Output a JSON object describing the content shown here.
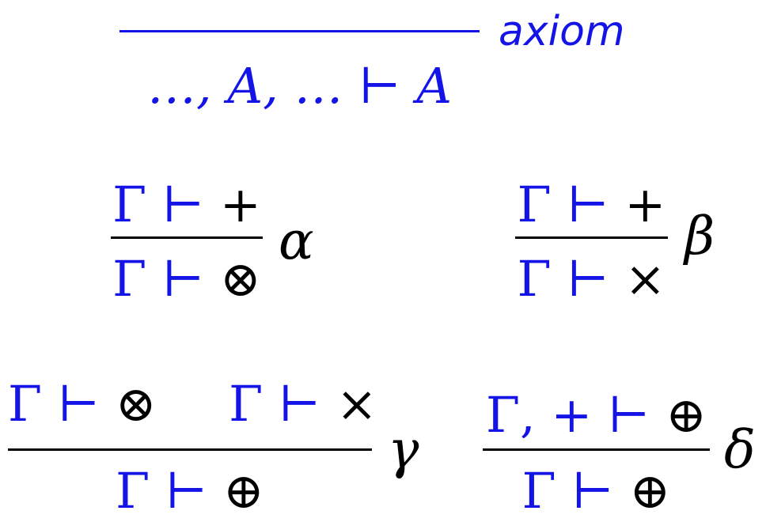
{
  "colors": {
    "hypothesis": "#1414e6",
    "connective": "#000000",
    "axiom_line": "#1414e6",
    "rule_line": "#000000"
  },
  "rules": {
    "axiom": {
      "label": "axiom",
      "conclusion": {
        "ctx": "…, A, … ⊢",
        "goal": "A"
      }
    },
    "alpha": {
      "label": "α",
      "premise": {
        "ctx": "Γ ⊢",
        "goal": "+"
      },
      "conclusion": {
        "ctx": "Γ ⊢",
        "goal": "⊗"
      }
    },
    "beta": {
      "label": "β",
      "premise": {
        "ctx": "Γ ⊢",
        "goal": "+"
      },
      "conclusion": {
        "ctx": "Γ ⊢",
        "goal": "×"
      }
    },
    "gamma": {
      "label": "γ",
      "premise_left": {
        "ctx": "Γ ⊢",
        "goal": "⊗"
      },
      "premise_right": {
        "ctx": "Γ ⊢",
        "goal": "×"
      },
      "conclusion": {
        "ctx": "Γ ⊢",
        "goal": "⊕"
      }
    },
    "delta": {
      "label": "δ",
      "premise": {
        "ctx": "Γ, + ⊢",
        "goal": "⊕"
      },
      "conclusion": {
        "ctx": "Γ ⊢",
        "goal": "⊕"
      }
    }
  }
}
